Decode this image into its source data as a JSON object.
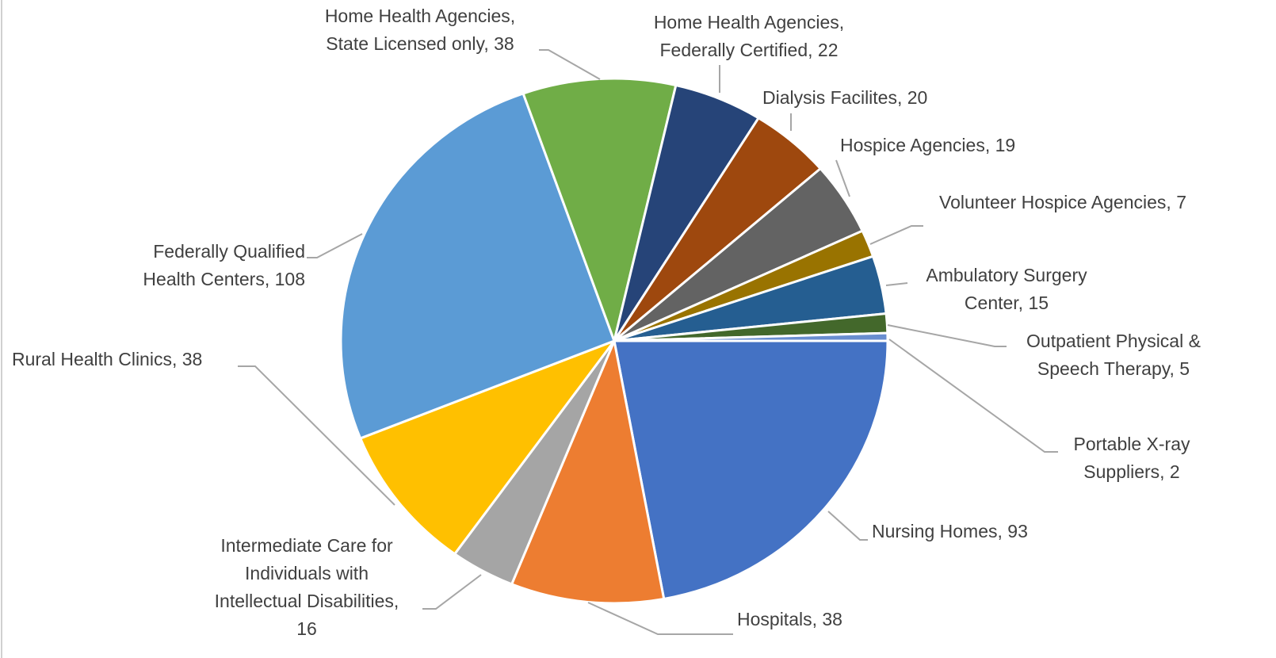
{
  "chart_data": {
    "type": "pie",
    "categories": [
      "Nursing Homes",
      "Hospitals",
      "Intermediate Care for Individuals with Intellectual Disabilities",
      "Rural Health Clinics",
      "Federally Qualified Health Centers",
      "Home Health Agencies, State Licensed only",
      "Home Health Agencies, Federally Certified",
      "Dialysis Facilites",
      "Hospice Agencies",
      "Volunteer Hospice Agencies",
      "Ambulatory Surgery Center",
      "Outpatient Physical & Speech Therapy",
      "Portable X-ray Suppliers"
    ],
    "values": [
      93,
      38,
      16,
      38,
      108,
      38,
      22,
      20,
      19,
      7,
      15,
      5,
      2
    ],
    "value_labels": [
      [
        "Nursing Homes, 93"
      ],
      [
        "Hospitals, 38"
      ],
      [
        "Intermediate Care for",
        "Individuals with",
        "Intellectual Disabilities,",
        "16"
      ],
      [
        "Rural Health Clinics, 38"
      ],
      [
        "Federally Qualified",
        "Health Centers, 108"
      ],
      [
        "Home Health Agencies,",
        "State Licensed only, 38"
      ],
      [
        "Home Health Agencies,",
        "Federally Certified, 22"
      ],
      [
        "Dialysis Facilites, 20"
      ],
      [
        "Hospice Agencies, 19"
      ],
      [
        "Volunteer Hospice Agencies, 7"
      ],
      [
        "Ambulatory Surgery",
        "Center, 15"
      ],
      [
        "Outpatient Physical &",
        "Speech Therapy, 5"
      ],
      [
        "Portable X-ray",
        "Suppliers, 2"
      ]
    ],
    "colors": [
      "#4472c4",
      "#ed7d31",
      "#a5a5a5",
      "#ffc000",
      "#5b9bd5",
      "#70ad47",
      "#264478",
      "#9e480e",
      "#636363",
      "#997300",
      "#255e91",
      "#43682b",
      "#698ed0"
    ]
  }
}
